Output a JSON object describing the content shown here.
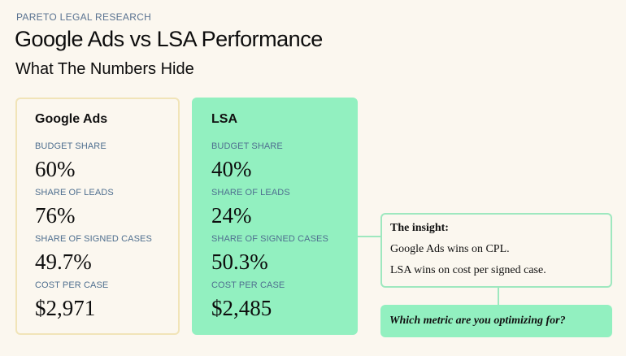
{
  "header": {
    "eyebrow": "PARETO LEGAL RESEARCH",
    "title": "Google Ads vs LSA Performance",
    "subtitle": "What The Numbers Hide"
  },
  "cards": [
    {
      "title": "Google Ads",
      "metrics": [
        {
          "label": "BUDGET SHARE",
          "value": "60%"
        },
        {
          "label": "SHARE OF LEADS",
          "value": "76%"
        },
        {
          "label": "SHARE OF SIGNED CASES",
          "value": "49.7%"
        },
        {
          "label": "COST PER CASE",
          "value": "$2,971"
        }
      ]
    },
    {
      "title": "LSA",
      "metrics": [
        {
          "label": "BUDGET SHARE",
          "value": "40%"
        },
        {
          "label": "SHARE OF LEADS",
          "value": "24%"
        },
        {
          "label": "SHARE OF SIGNED CASES",
          "value": "50.3%"
        },
        {
          "label": "COST PER CASE",
          "value": "$2,485"
        }
      ]
    }
  ],
  "insight": {
    "title": "The insight:",
    "lines": [
      "Google Ads wins on CPL.",
      "LSA wins on cost per signed case."
    ]
  },
  "question": "Which metric are you optimizing for?",
  "colors": {
    "background": "#fbf7ef",
    "accent_green": "#92f0c0",
    "card_border_yellow": "#f1e4b8",
    "label_blue": "#4f6f8f"
  }
}
